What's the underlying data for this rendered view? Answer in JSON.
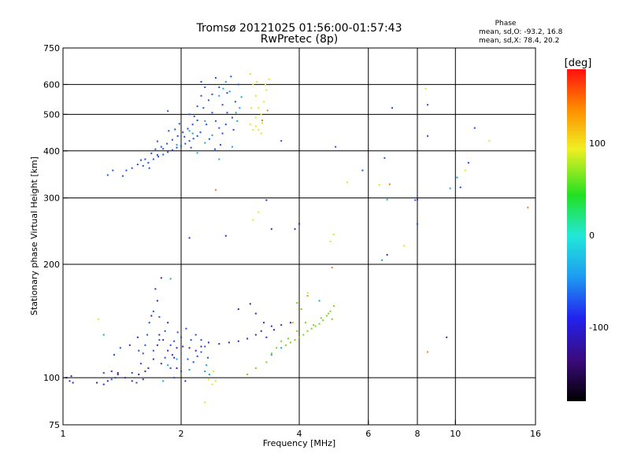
{
  "chart_data": {
    "type": "scatter",
    "title": "Tromsø 20121025 01:56:00-01:57:43",
    "subtitle": "RwPretec (8p)",
    "xlabel": "Frequency [MHz]",
    "ylabel": "Stationary phase Virtual Height [km]",
    "x_scale": "log2",
    "y_scale": "log",
    "xlim": [
      1,
      16
    ],
    "ylim": [
      75,
      750
    ],
    "x_ticks": [
      1,
      2,
      4,
      6,
      8,
      10,
      16
    ],
    "x_tick_labels": [
      "1",
      "2",
      "4",
      "6",
      "8",
      "10",
      "16"
    ],
    "x_grid": [
      1,
      2,
      4,
      6,
      8,
      10,
      16
    ],
    "y_ticks": [
      75,
      100,
      200,
      300,
      400,
      500,
      600,
      750
    ],
    "y_tick_labels": [
      "75",
      "100",
      "200",
      "300",
      "400",
      "500",
      "600",
      "750"
    ],
    "y_grid": [
      100,
      200,
      300,
      400,
      500,
      600
    ],
    "grid": true,
    "colorbar": {
      "label": "[deg]",
      "range": [
        -180,
        180
      ],
      "ticks": [
        100,
        0,
        -100
      ],
      "tick_labels": [
        "100",
        "0",
        "-100"
      ]
    },
    "phase_info": {
      "heading": "Phase",
      "line1": "mean, sd,O:  -93.2, 16.8",
      "line2": "mean, sd,X:  78.4, 20.2"
    },
    "series": [
      {
        "points": [
          [
            1.02,
            100
          ],
          [
            1.04,
            98
          ],
          [
            1.06,
            97
          ],
          [
            1.05,
            101
          ],
          [
            1.27,
            96
          ],
          [
            1.3,
            98
          ],
          [
            1.33,
            104
          ],
          [
            1.38,
            102
          ],
          [
            1.44,
            100
          ],
          [
            1.5,
            98
          ],
          [
            1.56,
            102
          ],
          [
            1.6,
            99
          ],
          [
            1.65,
            106
          ],
          [
            1.7,
            112
          ],
          [
            1.74,
            122
          ],
          [
            1.76,
            130
          ],
          [
            1.8,
            126
          ],
          [
            1.85,
            118
          ],
          [
            1.9,
            115
          ],
          [
            1.95,
            120
          ],
          [
            2.02,
            121
          ],
          [
            2.1,
            120
          ],
          [
            2.18,
            118
          ],
          [
            2.25,
            121
          ],
          [
            2.35,
            124
          ],
          [
            2.5,
            123
          ],
          [
            2.65,
            124
          ],
          [
            2.8,
            125
          ],
          [
            2.95,
            127
          ],
          [
            3.1,
            130
          ],
          [
            3.2,
            133
          ],
          [
            3.3,
            128
          ],
          [
            3.45,
            134
          ],
          [
            1.72,
            172
          ],
          [
            1.78,
            184
          ],
          [
            1.74,
            160
          ],
          [
            1.85,
            140
          ],
          [
            1.68,
            146
          ],
          [
            2.8,
            152
          ],
          [
            3.0,
            157
          ],
          [
            3.1,
            148
          ],
          [
            3.25,
            140
          ],
          [
            3.4,
            137
          ],
          [
            3.6,
            138
          ],
          [
            3.8,
            140
          ],
          [
            1.62,
            104
          ],
          [
            1.78,
            109
          ],
          [
            1.95,
            106
          ],
          [
            2.05,
            98
          ],
          [
            1.92,
            113
          ],
          [
            1.55,
            128
          ],
          [
            1.48,
            122
          ],
          [
            1.38,
            103
          ],
          [
            1.22,
            97
          ],
          [
            2.1,
            235
          ],
          [
            2.6,
            238
          ],
          [
            3.4,
            248
          ],
          [
            3.9,
            248
          ],
          [
            3.3,
            296
          ],
          [
            4.0,
            256
          ],
          [
            6.7,
            212
          ],
          [
            8.0,
            297
          ],
          [
            9.5,
            128
          ]
        ],
        "color": "#4422bb"
      },
      {
        "points": [
          [
            1.42,
            343
          ],
          [
            1.45,
            355
          ],
          [
            1.5,
            360
          ],
          [
            1.55,
            368
          ],
          [
            1.58,
            378
          ],
          [
            1.6,
            365
          ],
          [
            1.65,
            372
          ],
          [
            1.7,
            380
          ],
          [
            1.75,
            386
          ],
          [
            1.8,
            391
          ],
          [
            1.85,
            397
          ],
          [
            1.9,
            402
          ],
          [
            1.95,
            408
          ],
          [
            2.0,
            412
          ],
          [
            2.05,
            418
          ],
          [
            2.1,
            425
          ],
          [
            2.15,
            431
          ],
          [
            2.2,
            438
          ],
          [
            1.68,
            394
          ],
          [
            1.72,
            404
          ],
          [
            1.78,
            410
          ],
          [
            1.84,
            418
          ],
          [
            1.9,
            428
          ],
          [
            1.96,
            438
          ],
          [
            2.02,
            448
          ],
          [
            2.08,
            458
          ],
          [
            2.14,
            470
          ],
          [
            2.2,
            482
          ],
          [
            1.62,
            380
          ],
          [
            1.74,
            424
          ],
          [
            1.86,
            452
          ],
          [
            1.98,
            472
          ],
          [
            2.1,
            500
          ],
          [
            2.2,
            525
          ],
          [
            2.25,
            560
          ],
          [
            2.25,
            610
          ],
          [
            2.3,
            590
          ],
          [
            2.35,
            545
          ],
          [
            2.4,
            505
          ],
          [
            2.45,
            480
          ],
          [
            2.5,
            460
          ],
          [
            2.55,
            445
          ],
          [
            2.28,
            520
          ],
          [
            2.32,
            470
          ],
          [
            2.4,
            565
          ],
          [
            2.45,
            625
          ],
          [
            2.5,
            590
          ],
          [
            2.55,
            530
          ],
          [
            2.62,
            505
          ],
          [
            2.7,
            490
          ],
          [
            2.75,
            540
          ],
          [
            2.8,
            600
          ],
          [
            2.62,
            570
          ],
          [
            2.68,
            630
          ],
          [
            1.85,
            510
          ],
          [
            1.74,
            390
          ],
          [
            1.66,
            360
          ],
          [
            1.8,
            405
          ],
          [
            1.34,
            355
          ],
          [
            1.3,
            345
          ],
          [
            1.93,
            456
          ],
          [
            2.04,
            436
          ],
          [
            2.16,
            494
          ],
          [
            2.12,
            408
          ],
          [
            2.24,
            448
          ],
          [
            2.36,
            430
          ],
          [
            2.44,
            404
          ],
          [
            2.52,
            415
          ],
          [
            2.6,
            470
          ],
          [
            2.72,
            455
          ],
          [
            1.92,
            125
          ],
          [
            1.96,
            132
          ],
          [
            2.0,
            128
          ],
          [
            2.06,
            135
          ],
          [
            2.12,
            126
          ],
          [
            2.18,
            130
          ],
          [
            2.25,
            126
          ],
          [
            2.3,
            121
          ],
          [
            2.2,
            114
          ],
          [
            2.15,
            110
          ],
          [
            1.88,
            122
          ],
          [
            1.82,
            133
          ],
          [
            1.76,
            145
          ],
          [
            1.7,
            150
          ],
          [
            1.66,
            140
          ],
          [
            1.64,
            130
          ],
          [
            1.62,
            122
          ],
          [
            1.6,
            116
          ],
          [
            1.56,
            118
          ],
          [
            1.7,
            118
          ],
          [
            1.76,
            126
          ],
          [
            1.82,
            113
          ],
          [
            1.88,
            106
          ],
          [
            1.92,
            100
          ],
          [
            2.0,
            104
          ],
          [
            2.08,
            112
          ],
          [
            2.25,
            117
          ],
          [
            2.34,
            113
          ],
          [
            1.27,
            103
          ],
          [
            1.33,
            99
          ],
          [
            1.36,
            100
          ],
          [
            1.5,
            103
          ],
          [
            1.54,
            97
          ],
          [
            1.58,
            109
          ],
          [
            1.4,
            120
          ],
          [
            1.35,
            115
          ],
          [
            5.8,
            355
          ],
          [
            7.9,
            296
          ],
          [
            8.0,
            256
          ],
          [
            6.6,
            383
          ],
          [
            6.9,
            520
          ],
          [
            8.5,
            438
          ],
          [
            8.5,
            530
          ],
          [
            10.3,
            320
          ],
          [
            11.2,
            460
          ],
          [
            10.8,
            372
          ],
          [
            4.95,
            410
          ],
          [
            3.6,
            425
          ]
        ],
        "color": "#1f4fe0"
      },
      {
        "points": [
          [
            2.5,
            560
          ],
          [
            2.6,
            610
          ],
          [
            2.3,
            480
          ],
          [
            2.1,
            452
          ],
          [
            2.3,
            420
          ],
          [
            2.4,
            440
          ],
          [
            2.7,
            410
          ],
          [
            2.2,
            395
          ],
          [
            2.5,
            380
          ],
          [
            1.95,
            415
          ],
          [
            2.14,
            445
          ],
          [
            2.56,
            585
          ],
          [
            2.66,
            575
          ],
          [
            2.76,
            505
          ],
          [
            2.78,
            480
          ],
          [
            2.82,
            520
          ],
          [
            2.85,
            556
          ],
          [
            2.32,
            108
          ],
          [
            2.3,
            104
          ],
          [
            2.36,
            102
          ],
          [
            1.85,
            108
          ],
          [
            1.8,
            98
          ],
          [
            2.1,
            105
          ],
          [
            1.95,
            112
          ],
          [
            1.88,
            183
          ],
          [
            4.5,
            160
          ],
          [
            6.7,
            297
          ],
          [
            6.5,
            205
          ],
          [
            9.7,
            318
          ],
          [
            10.1,
            340
          ],
          [
            1.27,
            130
          ],
          [
            3.4,
            115
          ],
          [
            3.6,
            120
          ]
        ],
        "color": "#18a6d8"
      },
      {
        "points": [
          [
            3.5,
            120
          ],
          [
            3.7,
            122
          ],
          [
            3.8,
            124
          ],
          [
            3.9,
            126
          ],
          [
            4.0,
            128
          ],
          [
            4.1,
            130
          ],
          [
            4.2,
            133
          ],
          [
            4.3,
            135
          ],
          [
            4.4,
            137
          ],
          [
            4.5,
            139
          ],
          [
            4.6,
            142
          ],
          [
            4.7,
            146
          ],
          [
            4.8,
            150
          ],
          [
            4.9,
            155
          ],
          [
            3.6,
            125
          ],
          [
            3.75,
            127
          ],
          [
            3.95,
            133
          ],
          [
            4.15,
            140
          ],
          [
            4.35,
            138
          ],
          [
            4.55,
            144
          ],
          [
            4.75,
            148
          ],
          [
            3.3,
            110
          ],
          [
            3.4,
            116
          ],
          [
            3.1,
            106
          ],
          [
            2.95,
            102
          ],
          [
            3.85,
            140
          ],
          [
            4.05,
            152
          ],
          [
            4.2,
            165
          ],
          [
            3.95,
            158
          ],
          [
            4.85,
            143
          ]
        ],
        "color": "#7cd21c"
      },
      {
        "points": [
          [
            3.0,
            640
          ],
          [
            3.05,
            600
          ],
          [
            3.1,
            560
          ],
          [
            3.15,
            520
          ],
          [
            3.1,
            490
          ],
          [
            3.0,
            470
          ],
          [
            3.05,
            455
          ],
          [
            3.15,
            455
          ],
          [
            3.2,
            500
          ],
          [
            3.25,
            540
          ],
          [
            3.3,
            580
          ],
          [
            3.35,
            620
          ],
          [
            3.2,
            445
          ],
          [
            3.1,
            465
          ],
          [
            3.22,
            475
          ],
          [
            3.28,
            600
          ],
          [
            3.02,
            520
          ],
          [
            3.12,
            610
          ],
          [
            2.4,
            96
          ],
          [
            2.35,
            99
          ],
          [
            2.45,
            98
          ],
          [
            2.42,
            104
          ],
          [
            4.2,
            168
          ],
          [
            4.8,
            230
          ],
          [
            4.9,
            240
          ],
          [
            3.05,
            262
          ],
          [
            3.15,
            275
          ],
          [
            2.3,
            86
          ],
          [
            8.4,
            585
          ],
          [
            10.6,
            355
          ],
          [
            6.4,
            325
          ],
          [
            12.2,
            425
          ],
          [
            5.3,
            330
          ],
          [
            7.4,
            224
          ],
          [
            1.23,
            143
          ]
        ],
        "color": "#e6e61e"
      },
      {
        "points": [
          [
            3.22,
            482
          ],
          [
            3.32,
            512
          ],
          [
            4.85,
            196
          ],
          [
            2.45,
            315
          ],
          [
            8.5,
            117
          ],
          [
            15.3,
            283
          ],
          [
            6.8,
            326
          ]
        ],
        "color": "#ec7a18"
      }
    ]
  }
}
